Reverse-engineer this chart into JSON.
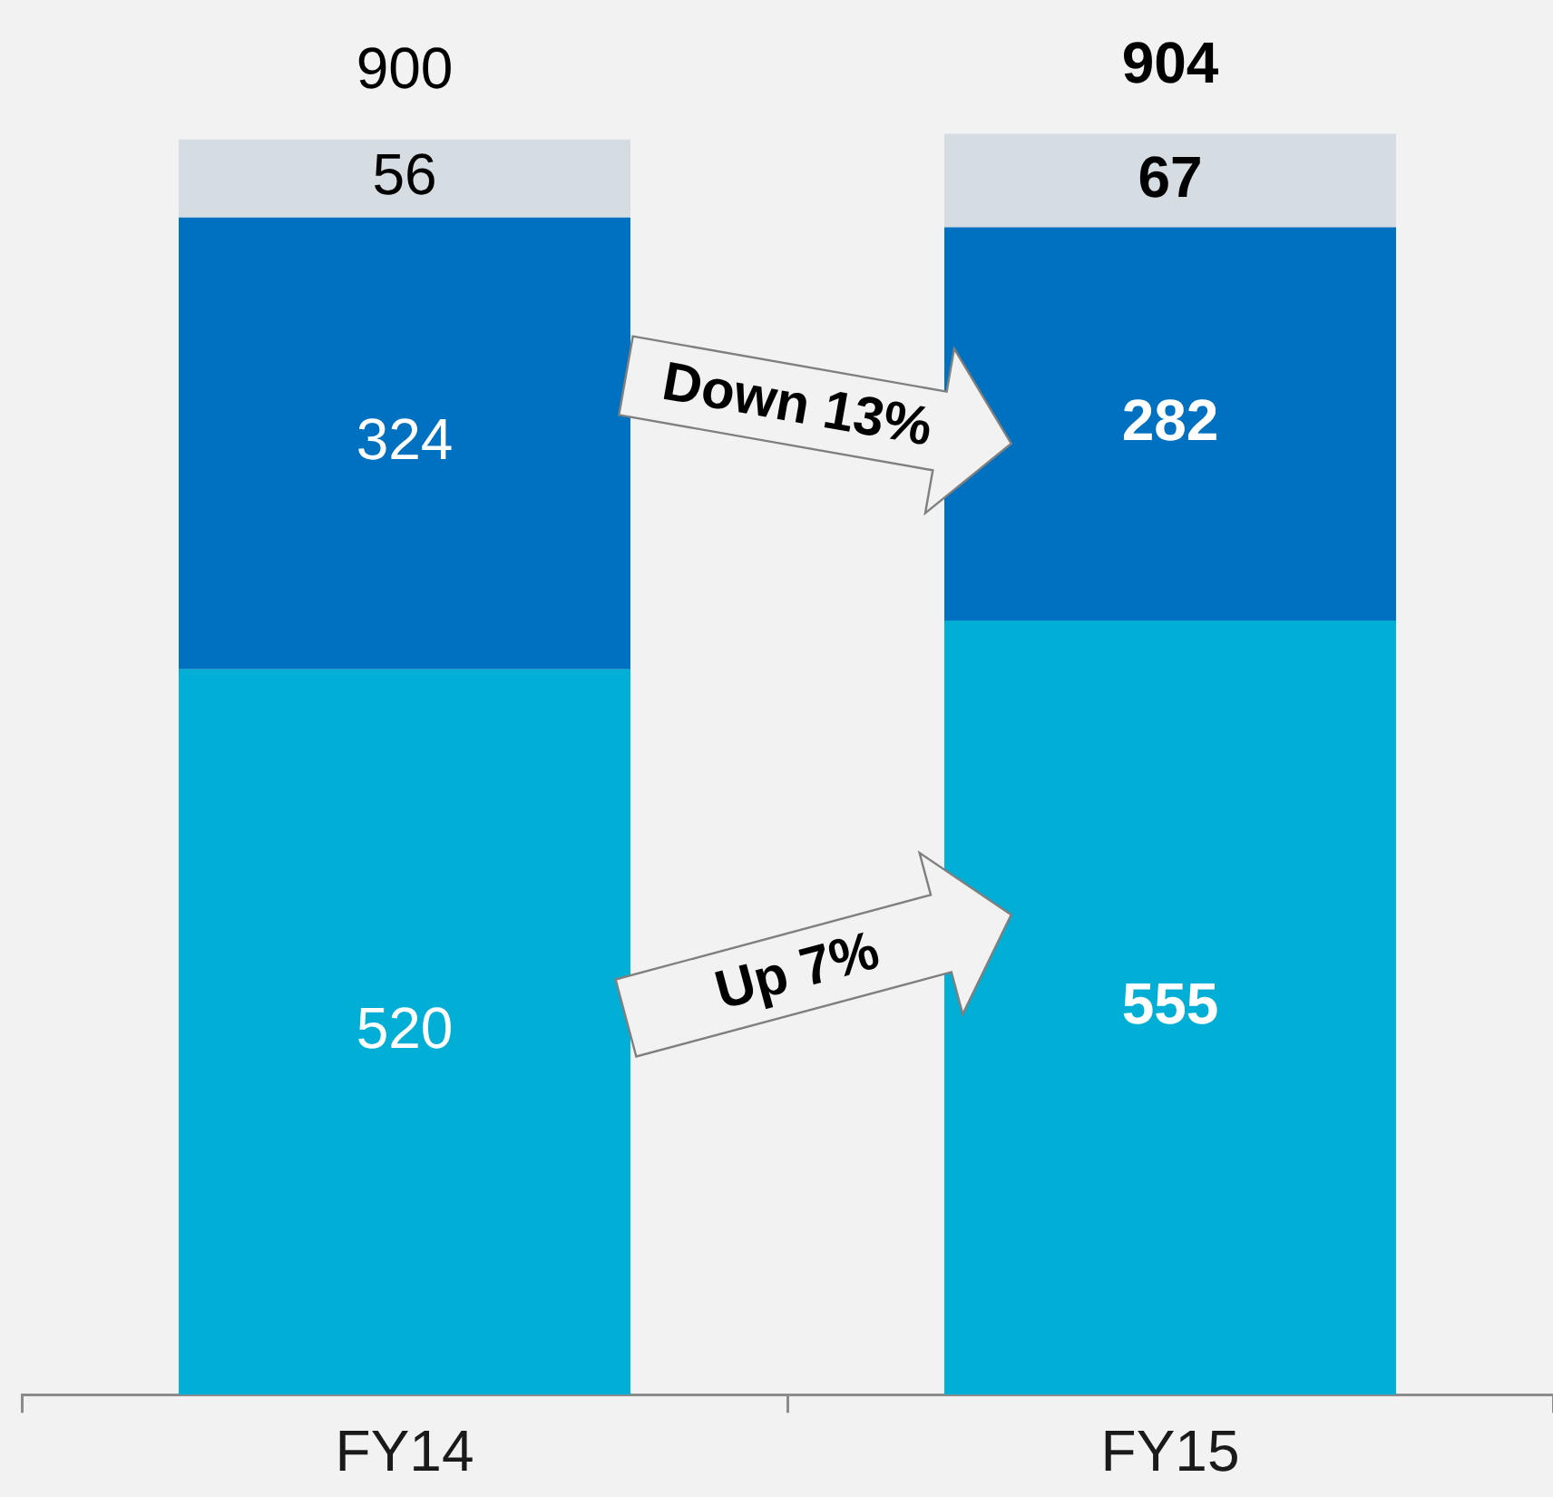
{
  "chart_data": {
    "type": "bar",
    "categories": [
      "FY14",
      "FY15"
    ],
    "series": [
      {
        "color": "#00aed6",
        "values": [
          520,
          555
        ]
      },
      {
        "color": "#0070c0",
        "values": [
          324,
          282
        ]
      },
      {
        "color": "#d5dce2",
        "values": [
          56,
          67
        ]
      }
    ],
    "stacked": true,
    "data_labels": true,
    "totals": [
      "900",
      "904"
    ],
    "annotations": [
      "Down 13%",
      "Up 7%"
    ]
  }
}
